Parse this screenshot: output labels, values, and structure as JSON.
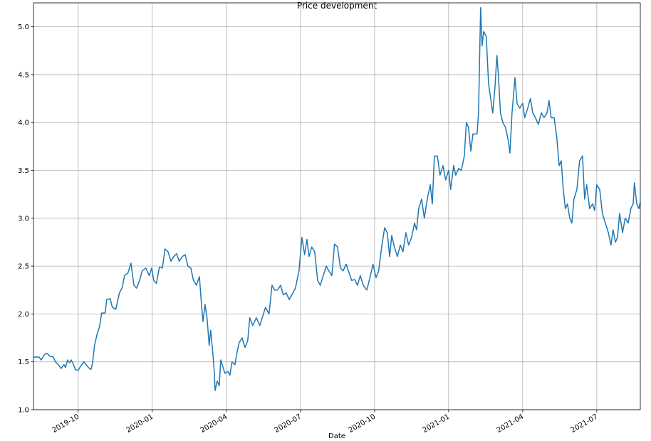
{
  "chart_data": {
    "type": "line",
    "title": "Price development",
    "xlabel": "Date",
    "x": [
      2019.599,
      2019.618,
      2019.625,
      2019.635,
      2019.644,
      2019.654,
      2019.666,
      2019.673,
      2019.683,
      2019.692,
      2019.702,
      2019.707,
      2019.714,
      2019.721,
      2019.726,
      2019.733,
      2019.74,
      2019.75,
      2019.757,
      2019.769,
      2019.779,
      2019.788,
      2019.793,
      2019.798,
      2019.805,
      2019.813,
      2019.822,
      2019.829,
      2019.841,
      2019.846,
      2019.858,
      2019.865,
      2019.877,
      2019.889,
      2019.899,
      2019.906,
      2019.918,
      2019.928,
      2019.938,
      2019.947,
      2019.957,
      2019.966,
      2019.978,
      2019.99,
      2019.998,
      2020.005,
      2020.014,
      2020.024,
      2020.034,
      2020.043,
      2020.053,
      2020.063,
      2020.072,
      2020.082,
      2020.091,
      2020.101,
      2020.111,
      2020.12,
      2020.13,
      2020.139,
      2020.149,
      2020.159,
      2020.166,
      2020.171,
      2020.178,
      2020.185,
      2020.192,
      2020.197,
      2020.204,
      2020.209,
      2020.212,
      2020.219,
      2020.226,
      2020.231,
      2020.238,
      2020.245,
      2020.255,
      2020.262,
      2020.269,
      2020.279,
      2020.286,
      2020.293,
      2020.303,
      2020.313,
      2020.322,
      2020.329,
      2020.339,
      2020.351,
      2020.363,
      2020.375,
      2020.382,
      2020.394,
      2020.404,
      2020.413,
      2020.423,
      2020.433,
      2020.442,
      2020.452,
      2020.462,
      2020.471,
      2020.483,
      2020.495,
      2020.505,
      2020.514,
      2020.522,
      2020.529,
      2020.538,
      2020.548,
      2020.558,
      2020.567,
      2020.577,
      2020.587,
      2020.596,
      2020.606,
      2020.615,
      2020.625,
      2020.635,
      2020.644,
      2020.654,
      2020.663,
      2020.673,
      2020.683,
      2020.692,
      2020.702,
      2020.712,
      2020.724,
      2020.736,
      2020.745,
      2020.755,
      2020.764,
      2020.774,
      2020.784,
      2020.793,
      2020.801,
      2020.808,
      2020.817,
      2020.827,
      2020.837,
      2020.846,
      2020.856,
      2020.865,
      2020.875,
      2020.885,
      2020.892,
      2020.899,
      2020.909,
      2020.918,
      2020.928,
      2020.938,
      2020.945,
      2020.952,
      2020.962,
      2020.971,
      2020.981,
      2020.99,
      2021.0,
      2021.007,
      2021.017,
      2021.024,
      2021.034,
      2021.043,
      2021.053,
      2021.06,
      2021.067,
      2021.075,
      2021.082,
      2021.096,
      2021.101,
      2021.108,
      2021.113,
      2021.118,
      2021.127,
      2021.135,
      2021.142,
      2021.149,
      2021.156,
      2021.163,
      2021.168,
      2021.175,
      2021.183,
      2021.192,
      2021.202,
      2021.207,
      2021.214,
      2021.224,
      2021.231,
      2021.24,
      2021.25,
      2021.257,
      2021.267,
      2021.276,
      2021.284,
      2021.293,
      2021.303,
      2021.313,
      2021.322,
      2021.332,
      2021.339,
      2021.346,
      2021.356,
      2021.365,
      2021.373,
      2021.38,
      2021.387,
      2021.394,
      2021.401,
      2021.409,
      2021.416,
      2021.423,
      2021.433,
      2021.442,
      2021.452,
      2021.459,
      2021.466,
      2021.476,
      2021.486,
      2021.493,
      2021.5,
      2021.51,
      2021.519,
      2021.529,
      2021.539,
      2021.548,
      2021.555,
      2021.563,
      2021.57,
      2021.577,
      2021.587,
      2021.596,
      2021.606,
      2021.615,
      2021.623,
      2021.627,
      2021.635,
      2021.642,
      2021.647
    ],
    "values": [
      1.55,
      1.55,
      1.52,
      1.57,
      1.59,
      1.56,
      1.55,
      1.5,
      1.47,
      1.43,
      1.47,
      1.44,
      1.52,
      1.49,
      1.52,
      1.48,
      1.42,
      1.41,
      1.45,
      1.5,
      1.46,
      1.43,
      1.42,
      1.48,
      1.67,
      1.78,
      1.87,
      2.01,
      2.01,
      2.15,
      2.16,
      2.07,
      2.05,
      2.22,
      2.28,
      2.4,
      2.43,
      2.53,
      2.3,
      2.27,
      2.35,
      2.45,
      2.48,
      2.4,
      2.48,
      2.35,
      2.32,
      2.49,
      2.48,
      2.68,
      2.65,
      2.55,
      2.6,
      2.63,
      2.55,
      2.6,
      2.62,
      2.5,
      2.48,
      2.35,
      2.3,
      2.39,
      2.1,
      1.92,
      2.1,
      1.95,
      1.67,
      1.83,
      1.6,
      1.4,
      1.2,
      1.3,
      1.25,
      1.52,
      1.45,
      1.38,
      1.4,
      1.36,
      1.5,
      1.47,
      1.6,
      1.7,
      1.75,
      1.65,
      1.72,
      1.96,
      1.88,
      1.96,
      1.88,
      2.0,
      2.07,
      2.0,
      2.3,
      2.25,
      2.25,
      2.3,
      2.2,
      2.22,
      2.15,
      2.2,
      2.27,
      2.45,
      2.8,
      2.62,
      2.78,
      2.6,
      2.7,
      2.65,
      2.35,
      2.3,
      2.4,
      2.5,
      2.45,
      2.4,
      2.73,
      2.7,
      2.48,
      2.45,
      2.52,
      2.44,
      2.35,
      2.36,
      2.3,
      2.4,
      2.3,
      2.25,
      2.4,
      2.52,
      2.38,
      2.45,
      2.7,
      2.9,
      2.85,
      2.6,
      2.82,
      2.7,
      2.6,
      2.72,
      2.65,
      2.85,
      2.72,
      2.8,
      2.95,
      2.88,
      3.1,
      3.2,
      3.0,
      3.2,
      3.35,
      3.15,
      3.65,
      3.65,
      3.45,
      3.55,
      3.4,
      3.5,
      3.3,
      3.55,
      3.45,
      3.52,
      3.5,
      3.65,
      4.0,
      3.95,
      3.7,
      3.88,
      3.88,
      4.1,
      5.2,
      4.8,
      4.95,
      4.9,
      4.4,
      4.25,
      4.1,
      4.35,
      4.7,
      4.5,
      4.1,
      4.0,
      3.95,
      3.8,
      3.68,
      4.1,
      4.47,
      4.2,
      4.15,
      4.2,
      4.05,
      4.15,
      4.25,
      4.1,
      4.05,
      3.98,
      4.1,
      4.05,
      4.1,
      4.23,
      4.05,
      4.05,
      3.85,
      3.55,
      3.6,
      3.3,
      3.1,
      3.15,
      3.0,
      2.95,
      3.2,
      3.3,
      3.6,
      3.65,
      3.2,
      3.35,
      3.1,
      3.15,
      3.08,
      3.35,
      3.3,
      3.05,
      2.95,
      2.85,
      2.72,
      2.88,
      2.75,
      2.8,
      3.05,
      2.85,
      3.0,
      2.95,
      3.1,
      3.15,
      3.37,
      3.15,
      3.1,
      3.17
    ],
    "color": "#1f77b4",
    "xlim": [
      2019.599,
      2021.647
    ],
    "xticks": [
      {
        "value": 2019.75,
        "label": "2019-10"
      },
      {
        "value": 2020.0,
        "label": "2020-01"
      },
      {
        "value": 2020.25,
        "label": "2020-04"
      },
      {
        "value": 2020.5,
        "label": "2020-07"
      },
      {
        "value": 2020.75,
        "label": "2020-10"
      },
      {
        "value": 2021.0,
        "label": "2021-01"
      },
      {
        "value": 2021.25,
        "label": "2021-04"
      },
      {
        "value": 2021.5,
        "label": "2021-07"
      }
    ],
    "ylim": [
      1.0,
      5.25
    ],
    "yticks": [
      {
        "value": 1.0,
        "label": "1.0"
      },
      {
        "value": 1.5,
        "label": "1.5"
      },
      {
        "value": 2.0,
        "label": "2.0"
      },
      {
        "value": 2.5,
        "label": "2.5"
      },
      {
        "value": 3.0,
        "label": "3.0"
      },
      {
        "value": 3.5,
        "label": "3.5"
      },
      {
        "value": 4.0,
        "label": "4.0"
      },
      {
        "value": 4.5,
        "label": "4.5"
      },
      {
        "value": 5.0,
        "label": "5.0"
      }
    ],
    "grid": true
  }
}
